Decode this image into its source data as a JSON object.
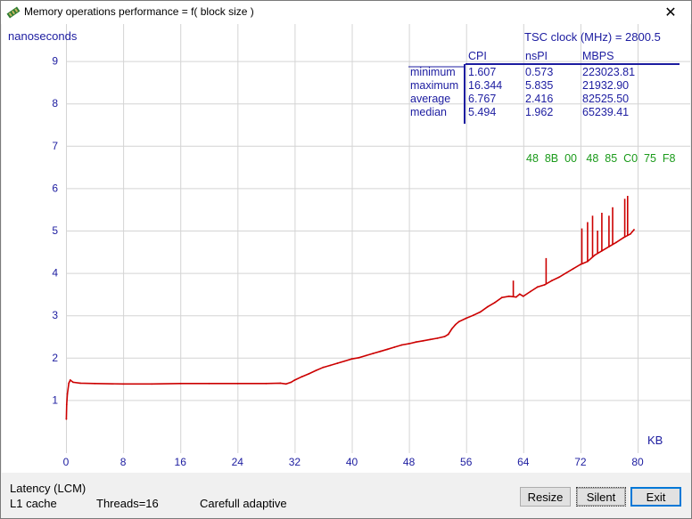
{
  "window": {
    "title": "Memory operations performance = f( block size )",
    "close_label": "✕"
  },
  "chart_data": {
    "type": "line",
    "ylabel": "nanoseconds",
    "xunit": "KB",
    "xlim": [
      0,
      80
    ],
    "ylim": [
      0,
      10
    ],
    "xticks": [
      "0",
      "8",
      "16",
      "24",
      "32",
      "40",
      "48",
      "56",
      "64",
      "72",
      "80"
    ],
    "yticks": [
      "1",
      "2",
      "3",
      "4",
      "5",
      "6",
      "7",
      "8",
      "9"
    ],
    "grid": true,
    "series": [
      {
        "color": "#cc0000",
        "x": [
          0.05,
          0.1,
          0.2,
          0.4,
          0.6,
          1,
          2,
          4,
          8,
          12,
          16,
          20,
          24,
          28,
          30,
          30.8,
          31.5,
          32,
          33,
          34,
          35,
          36,
          37,
          38,
          39,
          40,
          41,
          42,
          43,
          44,
          45,
          46,
          47,
          48,
          49,
          50,
          51,
          52,
          53,
          53.5,
          54,
          54.5,
          55,
          56,
          57,
          58,
          59,
          60,
          61,
          62,
          63,
          63.5,
          64,
          65,
          66,
          67,
          68,
          69,
          70,
          71,
          72,
          73,
          74,
          75,
          76,
          77,
          78,
          79,
          79.5
        ],
        "values": [
          0.55,
          0.9,
          1.15,
          1.4,
          1.47,
          1.42,
          1.4,
          1.39,
          1.38,
          1.38,
          1.39,
          1.39,
          1.39,
          1.39,
          1.4,
          1.38,
          1.42,
          1.47,
          1.55,
          1.62,
          1.7,
          1.77,
          1.82,
          1.87,
          1.92,
          1.97,
          2.0,
          2.05,
          2.1,
          2.15,
          2.2,
          2.25,
          2.3,
          2.33,
          2.37,
          2.4,
          2.43,
          2.46,
          2.5,
          2.55,
          2.68,
          2.78,
          2.85,
          2.93,
          3.0,
          3.08,
          3.2,
          3.3,
          3.42,
          3.45,
          3.43,
          3.5,
          3.45,
          3.56,
          3.67,
          3.72,
          3.82,
          3.9,
          4.0,
          4.1,
          4.2,
          4.27,
          4.42,
          4.52,
          4.62,
          4.72,
          4.83,
          4.92,
          5.02
        ]
      }
    ],
    "spikes": [
      {
        "x": 62.6,
        "y": 3.82
      },
      {
        "x": 67.2,
        "y": 4.35
      },
      {
        "x": 72.2,
        "y": 5.05
      },
      {
        "x": 73.0,
        "y": 5.2
      },
      {
        "x": 73.7,
        "y": 5.35
      },
      {
        "x": 74.4,
        "y": 5.0
      },
      {
        "x": 75.0,
        "y": 5.42
      },
      {
        "x": 76.0,
        "y": 5.35
      },
      {
        "x": 76.5,
        "y": 5.55
      },
      {
        "x": 78.2,
        "y": 5.75
      },
      {
        "x": 78.6,
        "y": 5.82
      }
    ]
  },
  "tsc": {
    "label": "TSC clock (MHz)  = 2800.5"
  },
  "stats": {
    "headers": [
      "CPI",
      "nsPI",
      "MBPS"
    ],
    "rows": [
      {
        "label": "minimum",
        "cpi": "1.607",
        "nspi": "0.573",
        "mbps": "223023.81"
      },
      {
        "label": "maximum",
        "cpi": "16.344",
        "nspi": "5.835",
        "mbps": "21932.90"
      },
      {
        "label": "average",
        "cpi": "6.767",
        "nspi": "2.416",
        "mbps": "82525.50"
      },
      {
        "label": "median",
        "cpi": "5.494",
        "nspi": "1.962",
        "mbps": "65239.41"
      }
    ]
  },
  "opcode_bytes": "48  8B  00   48  85  C0  75  F8",
  "status": {
    "mode": "Latency (LCM)",
    "target": "L1 cache",
    "threads": "Threads=16",
    "method": "Carefull adaptive"
  },
  "buttons": {
    "resize": "Resize",
    "silent": "Silent",
    "exit": "Exit"
  },
  "colors": {
    "series": "#cc0000",
    "text_blue": "#1c1ca0",
    "opcode_green": "#1a9a1a",
    "grid": "#d4d4d4"
  }
}
